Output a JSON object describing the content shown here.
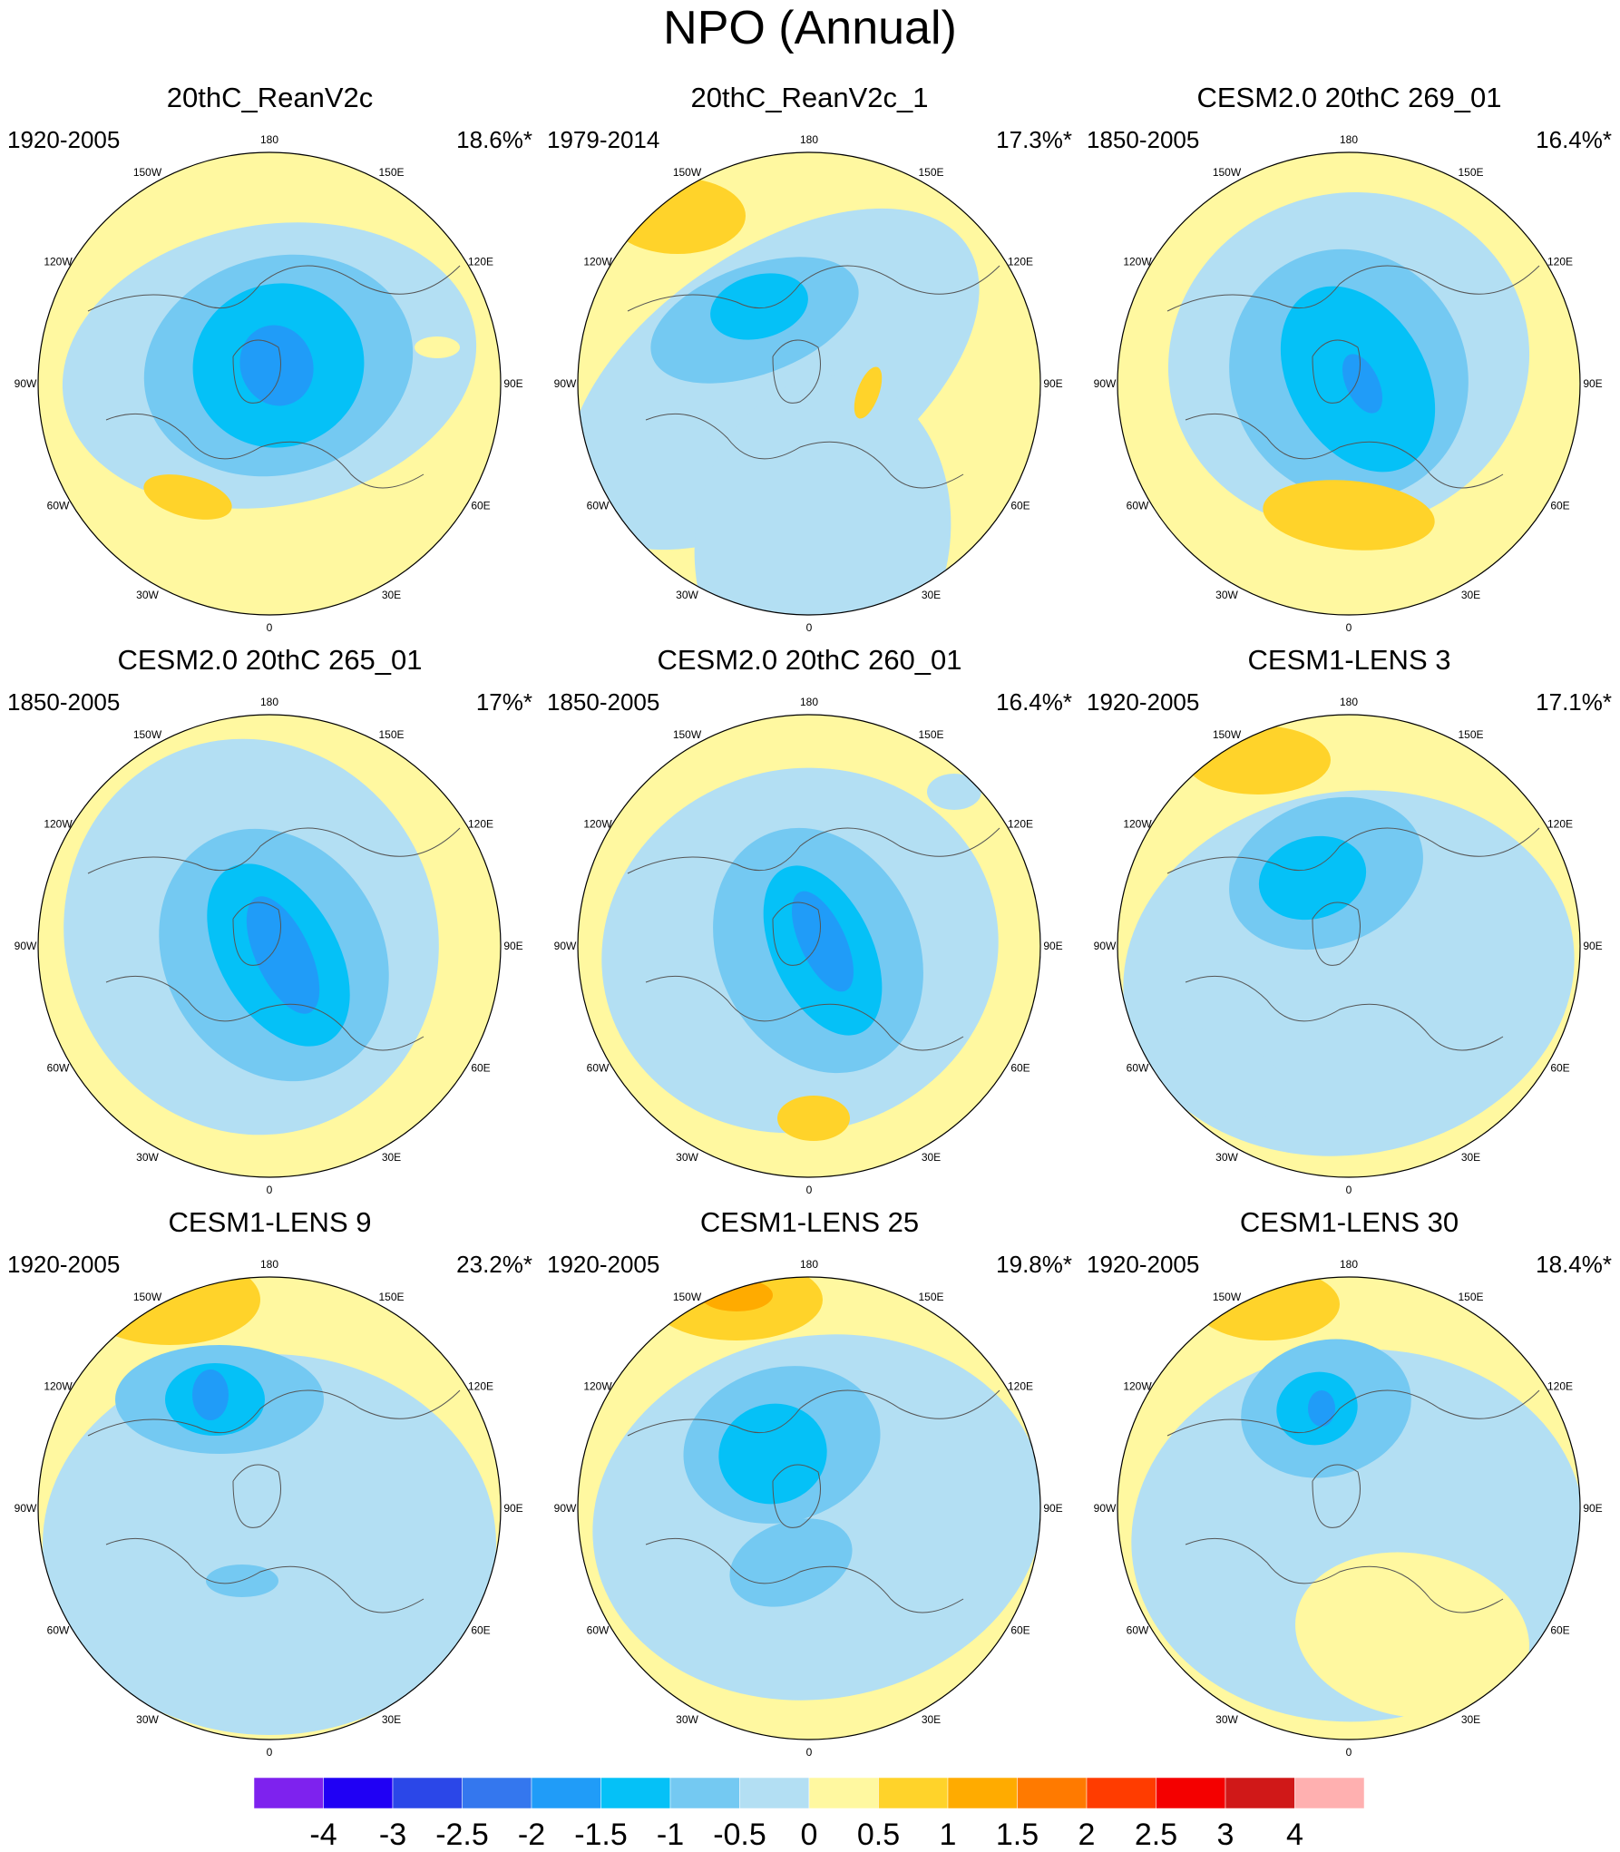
{
  "title": "NPO (Annual)",
  "panels": [
    {
      "title": "20thC_ReanV2c",
      "period": "1920-2005",
      "variance": "18.6%*",
      "variant": 0
    },
    {
      "title": "20thC_ReanV2c_1",
      "period": "1979-2014",
      "variance": "17.3%*",
      "variant": 1
    },
    {
      "title": "CESM2.0 20thC 269_01",
      "period": "1850-2005",
      "variance": "16.4%*",
      "variant": 2
    },
    {
      "title": "CESM2.0 20thC 265_01",
      "period": "1850-2005",
      "variance": "17%*",
      "variant": 3
    },
    {
      "title": "CESM2.0 20thC 260_01",
      "period": "1850-2005",
      "variance": "16.4%*",
      "variant": 4
    },
    {
      "title": "CESM1-LENS 3",
      "period": "1920-2005",
      "variance": "17.1%*",
      "variant": 5
    },
    {
      "title": "CESM1-LENS 9",
      "period": "1920-2005",
      "variance": "23.2%*",
      "variant": 6
    },
    {
      "title": "CESM1-LENS 25",
      "period": "1920-2005",
      "variance": "19.8%*",
      "variant": 7
    },
    {
      "title": "CESM1-LENS 30",
      "period": "1920-2005",
      "variance": "18.4%*",
      "variant": 8
    }
  ],
  "lon_labels": [
    "180",
    "150E",
    "120E",
    "90E",
    "60E",
    "30E",
    "0",
    "30W",
    "60W",
    "90W",
    "120W",
    "150W"
  ],
  "colorbar": {
    "colors": [
      "#7e22ee",
      "#2000f4",
      "#2b47e8",
      "#3477ee",
      "#209cf8",
      "#05c1f7",
      "#74c9f2",
      "#b3dff3",
      "#fff8a0",
      "#ffd32a",
      "#ffab00",
      "#ff7a00",
      "#ff3c00",
      "#f40000",
      "#d01818",
      "#ffb0b0"
    ],
    "labels": [
      "-4",
      "-3",
      "-2.5",
      "-2",
      "-1.5",
      "-1",
      "-0.5",
      "0",
      "0.5",
      "1",
      "1.5",
      "2",
      "2.5",
      "3",
      "4"
    ]
  }
}
